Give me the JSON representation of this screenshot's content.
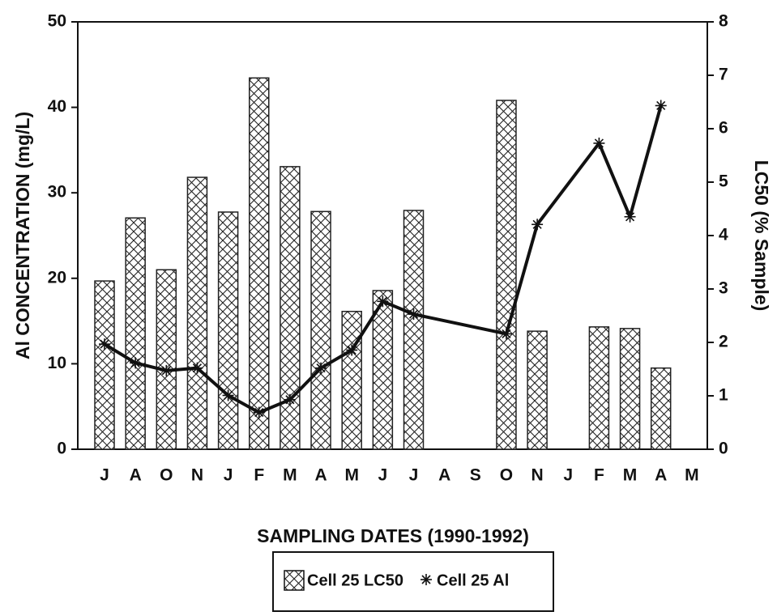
{
  "chart_data": {
    "type": "bar_line",
    "x_label": "SAMPLING DATES (1990-1992)",
    "y_label": "Al CONCENTRATION (mg/L)",
    "y2_label": "LC50 (% Sample)",
    "categories": [
      "J",
      "A",
      "O",
      "N",
      "J",
      "F",
      "M",
      "A",
      "M",
      "J",
      "J",
      "A",
      "S",
      "O",
      "N",
      "J",
      "F",
      "M",
      "A",
      "M"
    ],
    "series": [
      {
        "name": "Cell 25 LC50",
        "kind": "bar",
        "axis": "y2",
        "color": "#222222",
        "values": [
          3.15,
          4.33,
          3.36,
          5.09,
          4.44,
          6.95,
          5.29,
          4.45,
          2.58,
          2.97,
          4.47,
          null,
          null,
          6.53,
          2.21,
          null,
          2.29,
          2.26,
          1.52,
          null
        ]
      },
      {
        "name": "Cell 25 Al",
        "kind": "line",
        "axis": "y",
        "color": "#111111",
        "values": [
          12.3,
          10.1,
          9.2,
          9.5,
          6.3,
          4.3,
          5.8,
          9.5,
          11.6,
          17.3,
          15.8,
          null,
          null,
          13.5,
          26.3,
          null,
          35.8,
          27.2,
          40.2,
          null
        ]
      }
    ],
    "ylim": [
      0,
      50
    ],
    "yticks": [
      0,
      10,
      20,
      30,
      40,
      50
    ],
    "y2lim": [
      0,
      8
    ],
    "y2ticks": [
      0,
      1,
      2,
      3,
      4,
      5,
      6,
      7,
      8
    ],
    "legend": "bottom"
  }
}
